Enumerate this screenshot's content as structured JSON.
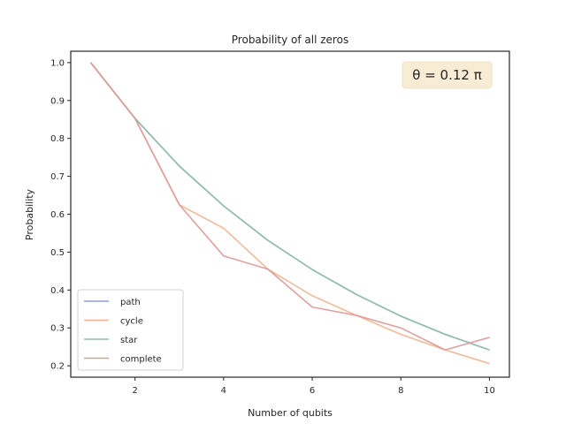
{
  "chart_data": {
    "type": "line",
    "title": "Probability of all zeros",
    "xlabel": "Number of qubits",
    "ylabel": "Probability",
    "xlim": [
      0.55,
      10.45
    ],
    "ylim": [
      0.17,
      1.03
    ],
    "xticks": [
      2,
      4,
      6,
      8,
      10
    ],
    "yticks": [
      0.2,
      0.3,
      0.4,
      0.5,
      0.6,
      0.7,
      0.8,
      0.9,
      1.0
    ],
    "xtick_labels": [
      "2",
      "4",
      "6",
      "8",
      "10"
    ],
    "ytick_labels": [
      "0.2",
      "0.3",
      "0.4",
      "0.5",
      "0.6",
      "0.7",
      "0.8",
      "0.9",
      "1.0"
    ],
    "grid": false,
    "legend_position": "lower-left",
    "annotation": "θ = 0.12 π",
    "x": [
      1,
      2,
      3,
      4,
      5,
      6,
      7,
      8,
      9,
      10
    ],
    "series": [
      {
        "name": "path",
        "color": "#8c9fcf",
        "values": [
          1.0,
          0.853,
          0.727,
          0.622,
          0.531,
          0.454,
          0.388,
          0.331,
          0.283,
          0.242
        ]
      },
      {
        "name": "cycle",
        "color": "#f0b592",
        "values": [
          1.0,
          0.853,
          0.625,
          0.563,
          0.455,
          0.385,
          0.333,
          0.283,
          0.242,
          0.206
        ]
      },
      {
        "name": "star",
        "color": "#8fbfa5",
        "values": [
          1.0,
          0.853,
          0.727,
          0.622,
          0.531,
          0.454,
          0.388,
          0.331,
          0.283,
          0.242
        ]
      },
      {
        "name": "complete",
        "color": "#dd9b9b",
        "values": [
          1.0,
          0.853,
          0.625,
          0.49,
          0.455,
          0.355,
          0.333,
          0.3,
          0.242,
          0.275
        ]
      }
    ]
  }
}
